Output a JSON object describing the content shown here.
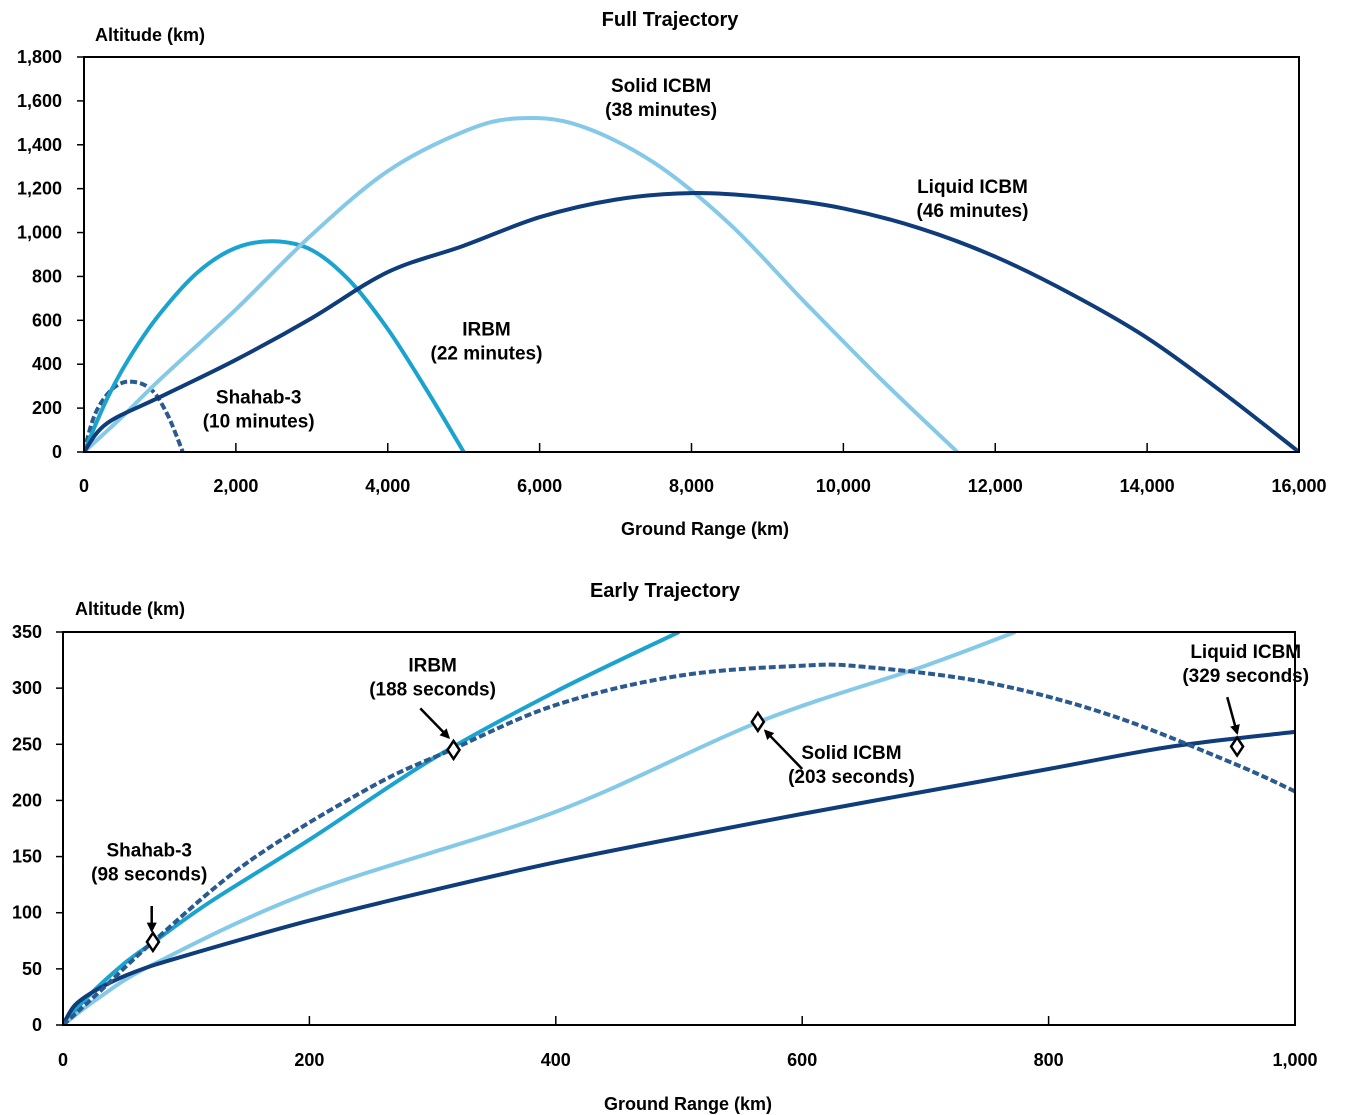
{
  "chart_data": [
    {
      "type": "line",
      "title": "Full Trajectory",
      "xlabel": "Ground Range (km)",
      "ylabel": "Altitude (km)",
      "xlim": [
        0,
        16000
      ],
      "ylim": [
        0,
        1800
      ],
      "xticks": [
        0,
        2000,
        4000,
        6000,
        8000,
        10000,
        12000,
        14000,
        16000
      ],
      "yticks": [
        0,
        200,
        400,
        600,
        800,
        1000,
        1200,
        1400,
        1600,
        1800
      ],
      "xtick_labels": [
        "0",
        "2,000",
        "4,000",
        "6,000",
        "8,000",
        "10,000",
        "12,000",
        "14,000",
        "16,000"
      ],
      "ytick_labels": [
        "0",
        "200",
        "400",
        "600",
        "800",
        "1,000",
        "1,200",
        "1,400",
        "1,600",
        "1,800"
      ],
      "grid": false,
      "series": [
        {
          "id": "shahab3",
          "color": "#2a5a8f",
          "dashed": true,
          "x": [
            0,
            100,
            200,
            350,
            500,
            640,
            800,
            950,
            1100,
            1200,
            1300
          ],
          "y": [
            0,
            130,
            210,
            280,
            315,
            320,
            305,
            260,
            170,
            90,
            0
          ]
        },
        {
          "id": "irbm",
          "color": "#1aa3cf",
          "dashed": false,
          "x": [
            0,
            300,
            600,
            1000,
            1500,
            2000,
            2500,
            3000,
            3500,
            4000,
            4500,
            5000
          ],
          "y": [
            0,
            240,
            430,
            630,
            820,
            930,
            960,
            920,
            780,
            560,
            290,
            0
          ]
        },
        {
          "id": "solid",
          "color": "#85c9e8",
          "dashed": false,
          "x": [
            0,
            500,
            1000,
            2000,
            3000,
            4000,
            5000,
            5700,
            6500,
            7500,
            8500,
            9500,
            10500,
            11500
          ],
          "y": [
            0,
            160,
            330,
            650,
            990,
            1280,
            1460,
            1520,
            1490,
            1320,
            1040,
            680,
            330,
            0
          ]
        },
        {
          "id": "liquid",
          "color": "#0f3c7a",
          "dashed": false,
          "x": [
            0,
            300,
            1000,
            2000,
            3000,
            4000,
            5000,
            6000,
            7000,
            8000,
            9000,
            10000,
            11000,
            12000,
            13000,
            14000,
            15000,
            16000
          ],
          "y": [
            0,
            130,
            250,
            420,
            610,
            820,
            940,
            1070,
            1150,
            1180,
            1160,
            1110,
            1020,
            890,
            720,
            520,
            270,
            0
          ]
        }
      ],
      "annotations": [
        {
          "lines": [
            "Solid ICBM",
            "(38 minutes)"
          ],
          "x": 7600,
          "y": 1640
        },
        {
          "lines": [
            "Liquid ICBM",
            "(46 minutes)"
          ],
          "x": 11700,
          "y": 1180
        },
        {
          "lines": [
            "IRBM",
            "(22 minutes)"
          ],
          "x": 5300,
          "y": 530
        },
        {
          "lines": [
            "Shahab-3",
            "(10 minutes)"
          ],
          "x": 2300,
          "y": 220
        }
      ]
    },
    {
      "type": "line",
      "title": "Early Trajectory",
      "xlabel": "Ground Range (km)",
      "ylabel": "Altitude (km)",
      "xlim": [
        0,
        1000
      ],
      "ylim": [
        0,
        350
      ],
      "xticks": [
        0,
        200,
        400,
        600,
        800,
        1000
      ],
      "yticks": [
        0,
        50,
        100,
        150,
        200,
        250,
        300,
        350
      ],
      "xtick_labels": [
        "0",
        "200",
        "400",
        "600",
        "800",
        "1,000"
      ],
      "ytick_labels": [
        "0",
        "50",
        "100",
        "150",
        "200",
        "250",
        "300",
        "350"
      ],
      "grid": false,
      "series": [
        {
          "id": "irbm",
          "color": "#1aa3cf",
          "dashed": false,
          "x": [
            0,
            20,
            50,
            75,
            120,
            200,
            300,
            400,
            500
          ],
          "y": [
            0,
            25,
            55,
            75,
            110,
            165,
            237,
            297,
            350
          ]
        },
        {
          "id": "solid",
          "color": "#85c9e8",
          "dashed": false,
          "x": [
            0,
            30,
            75,
            200,
            400,
            565,
            700,
            773
          ],
          "y": [
            0,
            25,
            55,
            118,
            190,
            270,
            320,
            350
          ]
        },
        {
          "id": "liquid",
          "color": "#0f3c7a",
          "dashed": false,
          "x": [
            0,
            10,
            30,
            60,
            100,
            200,
            300,
            400,
            500,
            600,
            700,
            800,
            900,
            1000
          ],
          "y": [
            0,
            18,
            33,
            48,
            62,
            93,
            120,
            145,
            167,
            188,
            208,
            228,
            248,
            261
          ]
        },
        {
          "id": "shahab3",
          "color": "#2a5a8f",
          "dashed": true,
          "x": [
            0,
            30,
            73,
            150,
            250,
            315,
            400,
            500,
            600,
            650,
            750,
            850,
            950,
            1000
          ],
          "y": [
            0,
            30,
            74,
            145,
            212,
            245,
            285,
            311,
            320,
            319,
            305,
            276,
            233,
            208
          ]
        }
      ],
      "markers": [
        {
          "x": 73,
          "y": 74
        },
        {
          "x": 317,
          "y": 245
        },
        {
          "x": 564,
          "y": 270
        },
        {
          "x": 953,
          "y": 248
        }
      ],
      "annotations": [
        {
          "lines": [
            "Shahab-3",
            "(98 seconds)"
          ],
          "x": 70,
          "y": 150,
          "arrow_from": [
            72,
            106
          ],
          "arrow_to": [
            72,
            84
          ]
        },
        {
          "lines": [
            "IRBM",
            "(188 seconds)"
          ],
          "x": 300,
          "y": 315,
          "arrow_from": [
            290,
            282
          ],
          "arrow_to": [
            313,
            256
          ]
        },
        {
          "lines": [
            "Solid ICBM",
            "(203 seconds)"
          ],
          "x": 640,
          "y": 237,
          "arrow_from": [
            600,
            228
          ],
          "arrow_to": [
            570,
            262
          ]
        },
        {
          "lines": [
            "Liquid ICBM",
            "(329 seconds)"
          ],
          "x": 960,
          "y": 327,
          "arrow_from": [
            945,
            292
          ],
          "arrow_to": [
            953,
            260
          ]
        }
      ]
    }
  ]
}
